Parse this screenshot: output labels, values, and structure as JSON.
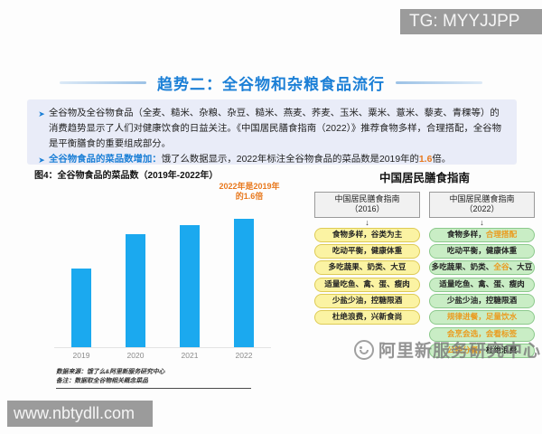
{
  "watermarks": {
    "tg": "TG: MYYJJPP",
    "site": "www.nbtydll.com",
    "brand": "阿里新服务研究中心"
  },
  "title": "趋势二：全谷物和杂粮食品流行",
  "intro": {
    "bullet1": "全谷物及全谷物食品（全麦、糙米、杂粮、杂豆、糙米、燕麦、荞麦、玉米、粟米、薏米、藜麦、青稞等）的消费趋势显示了人们对健康饮食的日益关注。《中国居民膳食指南（2022）》推荐食物多样，合理搭配，全谷物是平衡膳食的重要组成部分。",
    "bullet2_lead": "全谷物食品的菜品数增加：",
    "bullet2_body": "饿了么数据显示，2022年标注全谷物食品的菜品数是2019年的",
    "bullet2_highlight": "1.6",
    "bullet2_tail": "倍。"
  },
  "chart": {
    "annotation_line1": "2022年是2019年",
    "annotation_line2": "的1.6倍",
    "source_line1": "数据来源：饿了么&阿里新服务研究中心",
    "source_line2": "备注：数据取全谷物相关概念菜品"
  },
  "chart_data": {
    "type": "bar",
    "title": "图4：全谷物食品的菜品数（2019年-2022年）",
    "categories": [
      "2019",
      "2020",
      "2021",
      "2022"
    ],
    "values": [
      1.0,
      1.44,
      1.55,
      1.63
    ],
    "xlabel": "",
    "ylabel": "",
    "ylim": [
      0,
      1.7
    ],
    "grid": false,
    "annotation": "2022年是2019年的1.6倍",
    "bar_color": "#1BA9EF"
  },
  "guidelines": {
    "title": "中国居民膳食指南",
    "col2016": {
      "header_line1": "中国居民膳食指南",
      "header_line2": "（2016）",
      "items": [
        [
          {
            "text": "食物多样，谷类为主"
          }
        ],
        [
          {
            "text": "吃动平衡，健康体重"
          }
        ],
        [
          {
            "text": "多吃蔬果、奶类、大豆"
          }
        ],
        [
          {
            "text": "适量吃鱼、禽、蛋、瘦肉"
          }
        ],
        [
          {
            "text": "少盐少油，控糖限酒"
          }
        ],
        [
          {
            "text": "杜绝浪费，兴新食尚"
          }
        ]
      ]
    },
    "col2022": {
      "header_line1": "中国居民膳食指南",
      "header_line2": "（2022）",
      "items": [
        [
          {
            "text": "食物多样，"
          },
          {
            "text": "合理搭配",
            "color": "#EB9B1E"
          }
        ],
        [
          {
            "text": "吃动平衡，健康体重"
          }
        ],
        [
          {
            "text": "多吃蔬果、奶类、"
          },
          {
            "text": "全谷",
            "color": "#EB9B1E"
          },
          {
            "text": "、大豆"
          }
        ],
        [
          {
            "text": "适量吃鱼、禽、蛋、瘦肉"
          }
        ],
        [
          {
            "text": "少盐少油，控糖限酒"
          }
        ],
        [
          {
            "text": "规律进餐，足量饮水",
            "color": "#EB9B1E"
          }
        ],
        [
          {
            "text": "会烹会选，会看标签",
            "color": "#EB9B1E"
          }
        ],
        [
          {
            "text": "公筷分餐，",
            "color": "#EB9B1E"
          },
          {
            "text": "杜绝浪费"
          }
        ]
      ]
    }
  },
  "colors": {
    "accent": "#1B7FD6",
    "orange": "#E8791E",
    "bar": "#1BA9EF",
    "introBg": "#E9ECF8",
    "yellowBg": "#FBF3A3",
    "yellowBorder": "#DECB55",
    "greenBg": "#C9EDC5",
    "greenBorder": "#8CC98C"
  }
}
